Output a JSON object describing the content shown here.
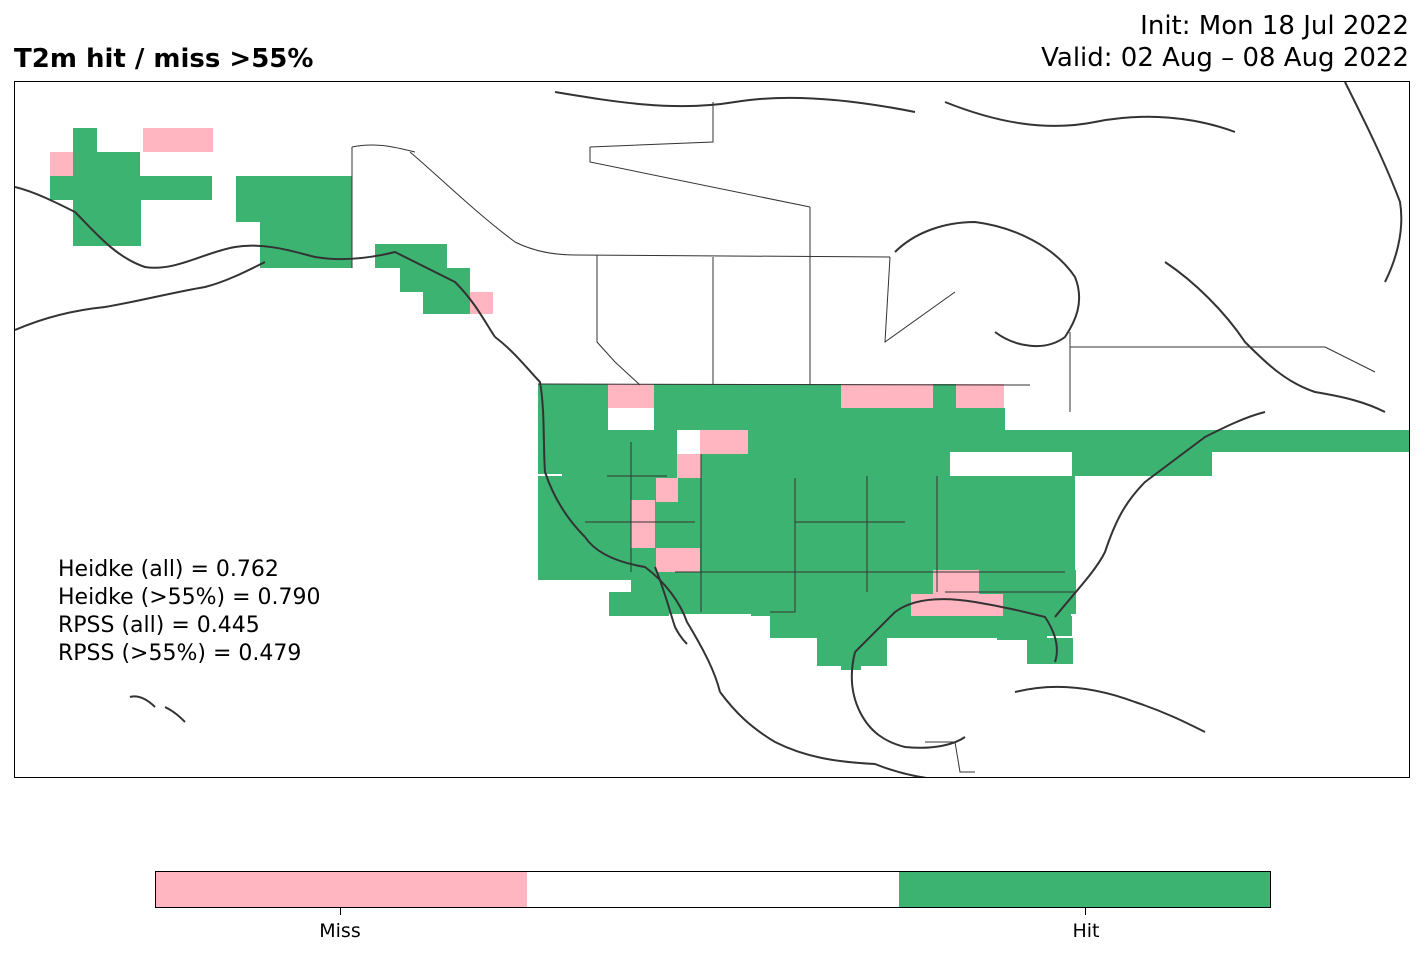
{
  "header": {
    "title": "T2m hit / miss  >55%",
    "init_line": "Init: Mon 18 Jul 2022",
    "valid_line": "Valid: 02 Aug – 08 Aug 2022"
  },
  "scores": [
    "Heidke (all) = 0.762",
    "Heidke (>55%) = 0.790",
    "RPSS (all) = 0.445",
    "RPSS (>55%) = 0.479"
  ],
  "legend": {
    "categories": [
      "Miss",
      "",
      "Hit"
    ],
    "colors": [
      "#ffb6c1",
      "#ffffff",
      "#3cb371"
    ]
  },
  "colors": {
    "hit": "#3cb371",
    "miss": "#ffb6c1",
    "coastline": "#333333"
  }
}
